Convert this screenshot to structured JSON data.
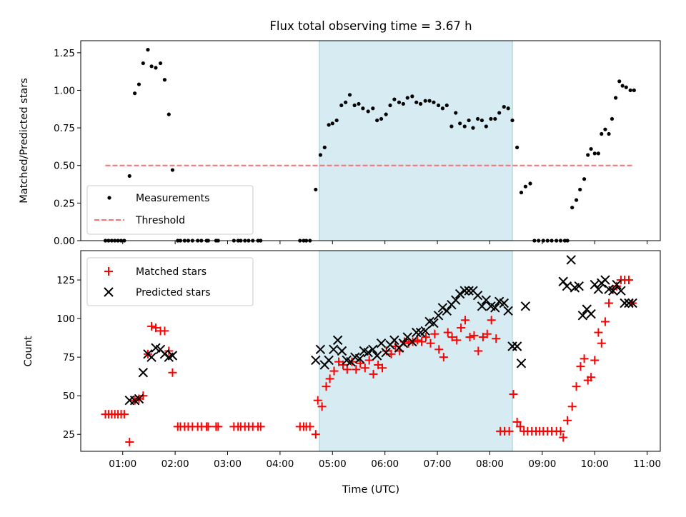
{
  "chart_data": [
    {
      "type": "scatter",
      "title": "Flux total observing time = 3.67 h",
      "ylabel": "Matched/Predicted stars",
      "xlim": [
        0.2,
        11.25
      ],
      "ylim": [
        0,
        1.33
      ],
      "yticks": [
        0.0,
        0.25,
        0.5,
        0.75,
        1.0,
        1.25
      ],
      "ytick_labels": [
        "0.00",
        "0.25",
        "0.50",
        "0.75",
        "1.00",
        "1.25"
      ],
      "shaded_span": {
        "x0": 4.75,
        "x1": 8.43,
        "color": "#add8e6"
      },
      "legend_position": "lower-left",
      "series": [
        {
          "name": "Measurements",
          "marker": "dot",
          "color": "#000000",
          "x": [
            0.67,
            0.73,
            0.79,
            0.85,
            0.91,
            0.97,
            1.03,
            1.13,
            1.23,
            1.31,
            1.39,
            1.48,
            1.55,
            1.63,
            1.72,
            1.8,
            1.88,
            1.95,
            2.05,
            2.1,
            2.18,
            2.25,
            2.33,
            2.43,
            2.5,
            2.6,
            2.63,
            2.78,
            2.82,
            3.12,
            3.2,
            3.25,
            3.33,
            3.4,
            3.48,
            3.58,
            3.63,
            4.38,
            4.45,
            4.5,
            4.57,
            4.68,
            4.77,
            4.85,
            4.93,
            5.0,
            5.08,
            5.17,
            5.25,
            5.33,
            5.42,
            5.5,
            5.58,
            5.68,
            5.77,
            5.85,
            5.93,
            6.02,
            6.1,
            6.18,
            6.27,
            6.35,
            6.43,
            6.52,
            6.6,
            6.68,
            6.77,
            6.85,
            6.93,
            7.02,
            7.1,
            7.18,
            7.27,
            7.35,
            7.43,
            7.52,
            7.6,
            7.68,
            7.77,
            7.85,
            7.93,
            8.02,
            8.1,
            8.18,
            8.27,
            8.35,
            8.43,
            8.52,
            8.6,
            8.68,
            8.77,
            8.85,
            8.93,
            9.02,
            9.1,
            9.18,
            9.27,
            9.35,
            9.43,
            9.48,
            9.57,
            9.65,
            9.72,
            9.8,
            9.87,
            9.93,
            10.0,
            10.07,
            10.13,
            10.2,
            10.27,
            10.33,
            10.4,
            10.47,
            10.53,
            10.6,
            10.68,
            10.75
          ],
          "y": [
            0,
            0,
            0,
            0,
            0,
            0,
            0,
            0.43,
            0.98,
            1.04,
            1.18,
            1.27,
            1.16,
            1.15,
            1.18,
            1.07,
            0.84,
            0.47,
            0,
            0,
            0,
            0,
            0,
            0,
            0,
            0,
            0,
            0,
            0,
            0,
            0,
            0,
            0,
            0,
            0,
            0,
            0,
            0,
            0,
            0,
            0,
            0.34,
            0.57,
            0.62,
            0.77,
            0.78,
            0.8,
            0.9,
            0.92,
            0.97,
            0.9,
            0.91,
            0.88,
            0.86,
            0.88,
            0.8,
            0.81,
            0.84,
            0.9,
            0.94,
            0.92,
            0.91,
            0.95,
            0.96,
            0.92,
            0.91,
            0.93,
            0.93,
            0.92,
            0.9,
            0.88,
            0.9,
            0.76,
            0.85,
            0.78,
            0.76,
            0.8,
            0.75,
            0.81,
            0.8,
            0.76,
            0.81,
            0.81,
            0.85,
            0.89,
            0.88,
            0.8,
            0.62,
            0.32,
            0.36,
            0.38,
            0,
            0,
            0,
            0,
            0,
            0,
            0,
            0,
            0,
            0.22,
            0.27,
            0.34,
            0.41,
            0.57,
            0.61,
            0.58,
            0.58,
            0.71,
            0.74,
            0.71,
            0.81,
            0.95,
            1.06,
            1.03,
            1.02,
            1.0,
            1.0
          ]
        },
        {
          "name": "Threshold",
          "style": "dashed",
          "color": "#ff7070",
          "x": [
            0.67,
            10.75
          ],
          "y": [
            0.5,
            0.5
          ]
        }
      ]
    },
    {
      "type": "scatter",
      "xlabel": "Time (UTC)",
      "ylabel": "Count",
      "xlim": [
        0.2,
        11.25
      ],
      "ylim": [
        14,
        144
      ],
      "xticks": [
        1,
        2,
        3,
        4,
        5,
        6,
        7,
        8,
        9,
        10,
        11
      ],
      "xtick_labels": [
        "01:00",
        "02:00",
        "03:00",
        "04:00",
        "05:00",
        "06:00",
        "07:00",
        "08:00",
        "09:00",
        "10:00",
        "11:00"
      ],
      "yticks": [
        25,
        50,
        75,
        100,
        125
      ],
      "ytick_labels": [
        "25",
        "50",
        "75",
        "100",
        "125"
      ],
      "shaded_span": {
        "x0": 4.75,
        "x1": 8.43,
        "color": "#add8e6"
      },
      "legend_position": "upper-left",
      "series": [
        {
          "name": "Matched stars",
          "marker": "plus",
          "color": "#ff0000",
          "x": [
            0.67,
            0.73,
            0.79,
            0.85,
            0.91,
            0.97,
            1.03,
            1.13,
            1.23,
            1.31,
            1.39,
            1.48,
            1.55,
            1.63,
            1.72,
            1.8,
            1.88,
            1.95,
            2.05,
            2.1,
            2.18,
            2.25,
            2.33,
            2.43,
            2.5,
            2.6,
            2.63,
            2.78,
            2.82,
            3.12,
            3.2,
            3.25,
            3.33,
            3.4,
            3.48,
            3.58,
            3.63,
            4.38,
            4.45,
            4.5,
            4.57,
            4.68,
            4.72,
            4.8,
            4.88,
            4.95,
            5.03,
            5.12,
            5.2,
            5.28,
            5.37,
            5.45,
            5.53,
            5.62,
            5.7,
            5.78,
            5.87,
            5.95,
            6.03,
            6.12,
            6.2,
            6.28,
            6.37,
            6.45,
            6.53,
            6.62,
            6.7,
            6.78,
            6.87,
            6.95,
            7.03,
            7.12,
            7.2,
            7.28,
            7.37,
            7.45,
            7.53,
            7.62,
            7.7,
            7.78,
            7.87,
            7.95,
            8.03,
            8.12,
            8.2,
            8.28,
            8.37,
            8.45,
            8.52,
            8.58,
            8.65,
            8.72,
            8.8,
            8.88,
            8.95,
            9.02,
            9.1,
            9.18,
            9.27,
            9.35,
            9.4,
            9.48,
            9.57,
            9.65,
            9.73,
            9.8,
            9.87,
            9.93,
            10.0,
            10.07,
            10.13,
            10.2,
            10.27,
            10.35,
            10.42,
            10.5,
            10.57,
            10.65,
            10.72
          ],
          "y": [
            38,
            38,
            38,
            38,
            38,
            38,
            38,
            20,
            47,
            48,
            50,
            77,
            95,
            94,
            92,
            92,
            79,
            65,
            30,
            30,
            30,
            30,
            30,
            30,
            30,
            30,
            30,
            30,
            30,
            30,
            30,
            30,
            30,
            30,
            30,
            30,
            30,
            30,
            30,
            30,
            30,
            25,
            47,
            43,
            56,
            61,
            66,
            72,
            70,
            67,
            72,
            67,
            71,
            68,
            73,
            64,
            70,
            68,
            79,
            77,
            82,
            79,
            85,
            84,
            85,
            86,
            85,
            88,
            84,
            90,
            80,
            75,
            91,
            88,
            86,
            94,
            99,
            88,
            89,
            79,
            88,
            90,
            99,
            87,
            27,
            27,
            27,
            51,
            33,
            30,
            27,
            27,
            27,
            27,
            27,
            27,
            27,
            27,
            27,
            27,
            23,
            34,
            43,
            56,
            69,
            74,
            60,
            62,
            73,
            91,
            84,
            98,
            110,
            119,
            121,
            125,
            125,
            125,
            110
          ]
        },
        {
          "name": "Predicted stars",
          "marker": "x",
          "color": "#000000",
          "x": [
            1.13,
            1.23,
            1.31,
            1.39,
            1.48,
            1.55,
            1.63,
            1.72,
            1.8,
            1.88,
            1.95,
            4.68,
            4.77,
            4.85,
            4.93,
            5.02,
            5.1,
            5.18,
            5.27,
            5.35,
            5.43,
            5.52,
            5.6,
            5.68,
            5.77,
            5.85,
            5.93,
            6.02,
            6.1,
            6.18,
            6.27,
            6.35,
            6.43,
            6.52,
            6.6,
            6.68,
            6.77,
            6.85,
            6.93,
            7.02,
            7.1,
            7.18,
            7.27,
            7.35,
            7.43,
            7.52,
            7.6,
            7.68,
            7.77,
            7.85,
            7.93,
            8.02,
            8.1,
            8.18,
            8.27,
            8.35,
            8.43,
            8.52,
            8.6,
            8.68,
            9.4,
            9.47,
            9.55,
            9.62,
            9.7,
            9.77,
            9.85,
            9.93,
            10.0,
            10.07,
            10.13,
            10.2,
            10.27,
            10.35,
            10.42,
            10.5,
            10.57,
            10.65,
            10.72
          ],
          "y": [
            47,
            47,
            48,
            65,
            77,
            75,
            81,
            80,
            77,
            75,
            76,
            73,
            80,
            70,
            73,
            80,
            86,
            79,
            73,
            72,
            75,
            74,
            79,
            78,
            80,
            76,
            84,
            78,
            83,
            86,
            81,
            84,
            88,
            85,
            91,
            91,
            92,
            98,
            97,
            102,
            107,
            105,
            109,
            112,
            116,
            118,
            118,
            118,
            115,
            108,
            112,
            108,
            107,
            111,
            110,
            105,
            82,
            82,
            71,
            108,
            124,
            121,
            138,
            120,
            121,
            102,
            106,
            103,
            122,
            119,
            123,
            125,
            119,
            118,
            122,
            118,
            110,
            110,
            110
          ]
        }
      ]
    }
  ]
}
